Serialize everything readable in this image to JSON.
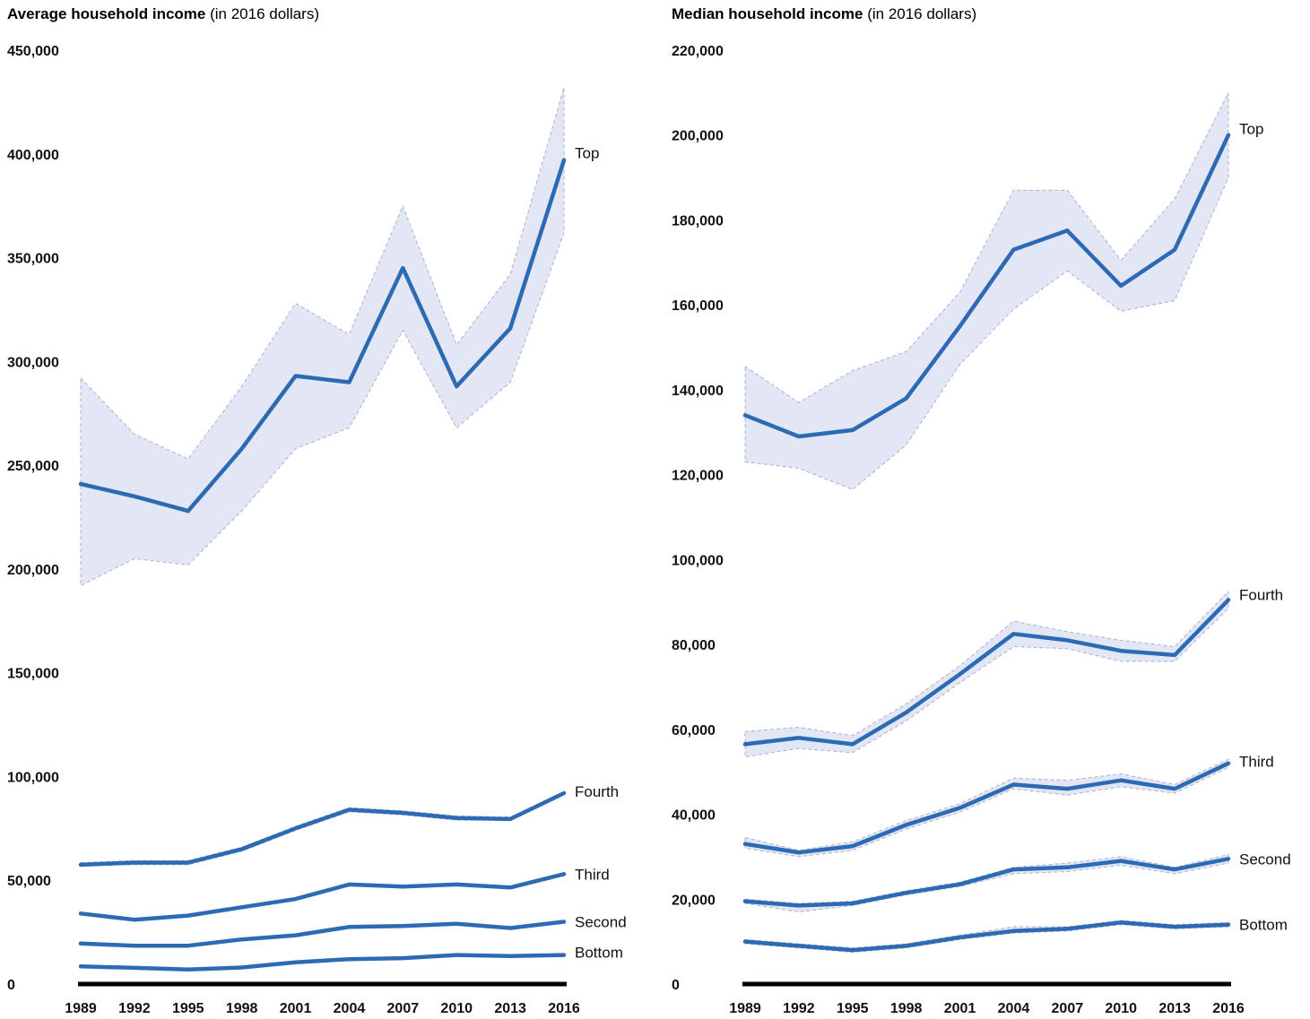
{
  "chart_data": [
    {
      "type": "line",
      "title": "Average household income",
      "subtitle": "(in 2016 dollars)",
      "xlabel": "",
      "ylabel": "",
      "categories": [
        "1989",
        "1992",
        "1995",
        "1998",
        "2001",
        "2004",
        "2007",
        "2010",
        "2013",
        "2016"
      ],
      "ylim": [
        0,
        450000
      ],
      "yticks": [
        0,
        50000,
        100000,
        150000,
        200000,
        250000,
        300000,
        350000,
        400000,
        450000
      ],
      "ytick_labels": [
        "0",
        "50,000",
        "100,000",
        "150,000",
        "200,000",
        "250,000",
        "300,000",
        "350,000",
        "400,000",
        "450,000"
      ],
      "grid": false,
      "legend": "inline labels at line ends",
      "series": [
        {
          "name": "Top",
          "values": [
            241000,
            235000,
            228000,
            258000,
            293000,
            290000,
            345000,
            288000,
            316000,
            397000
          ],
          "lower": [
            192000,
            205000,
            202000,
            228000,
            258000,
            268000,
            315000,
            268000,
            290000,
            362000
          ],
          "upper": [
            292000,
            265000,
            253000,
            288000,
            328000,
            313000,
            375000,
            308000,
            342000,
            432000
          ]
        },
        {
          "name": "Fourth",
          "values": [
            57500,
            58500,
            58500,
            65000,
            75000,
            84000,
            82500,
            80000,
            79500,
            92000
          ],
          "lower": [
            57000,
            57500,
            57500,
            64000,
            74000,
            83000,
            81500,
            79000,
            79000,
            91500
          ],
          "upper": [
            58500,
            59500,
            59500,
            66000,
            76000,
            85000,
            83500,
            81000,
            80500,
            92500
          ]
        },
        {
          "name": "Third",
          "values": [
            34000,
            31000,
            33000,
            37000,
            41000,
            48000,
            47000,
            48000,
            46500,
            53000
          ],
          "lower": [
            33500,
            30500,
            32500,
            36500,
            40500,
            47500,
            46500,
            47500,
            46000,
            52500
          ],
          "upper": [
            34500,
            31500,
            33500,
            37500,
            41500,
            48500,
            47500,
            48500,
            47000,
            53500
          ]
        },
        {
          "name": "Second",
          "values": [
            19500,
            18500,
            18500,
            21500,
            23500,
            27500,
            28000,
            29000,
            27000,
            30000
          ],
          "lower": [
            19000,
            18000,
            18000,
            21000,
            23000,
            27000,
            27500,
            28500,
            26500,
            29500
          ],
          "upper": [
            20000,
            19000,
            19000,
            22000,
            24000,
            28000,
            28500,
            29500,
            27500,
            30500
          ]
        },
        {
          "name": "Bottom",
          "values": [
            8500,
            7800,
            7000,
            8000,
            10500,
            12000,
            12500,
            14000,
            13500,
            14000
          ],
          "lower": [
            8200,
            7500,
            6700,
            7700,
            10200,
            11700,
            12200,
            13700,
            13200,
            13700
          ],
          "upper": [
            8800,
            8100,
            7300,
            8300,
            10800,
            12300,
            12800,
            14300,
            13800,
            14300
          ]
        }
      ]
    },
    {
      "type": "line",
      "title": "Median household income",
      "subtitle": "(in 2016 dollars)",
      "xlabel": "",
      "ylabel": "",
      "categories": [
        "1989",
        "1992",
        "1995",
        "1998",
        "2001",
        "2004",
        "2007",
        "2010",
        "2013",
        "2016"
      ],
      "ylim": [
        0,
        220000
      ],
      "yticks": [
        0,
        20000,
        40000,
        60000,
        80000,
        100000,
        120000,
        140000,
        160000,
        180000,
        200000,
        220000
      ],
      "ytick_labels": [
        "0",
        "20,000",
        "40,000",
        "60,000",
        "80,000",
        "100,000",
        "120,000",
        "140,000",
        "160,000",
        "180,000",
        "200,000",
        "220,000"
      ],
      "grid": false,
      "legend": "inline labels at line ends",
      "series": [
        {
          "name": "Top",
          "values": [
            134000,
            129000,
            130500,
            138000,
            155000,
            173000,
            177500,
            164500,
            173000,
            200000
          ],
          "lower": [
            123000,
            121500,
            116500,
            127000,
            146000,
            159000,
            168000,
            158500,
            161000,
            190000
          ],
          "upper": [
            145500,
            137000,
            144500,
            149000,
            163000,
            187000,
            187000,
            170500,
            185000,
            210000
          ]
        },
        {
          "name": "Fourth",
          "values": [
            56500,
            58000,
            56500,
            64000,
            73000,
            82500,
            81000,
            78500,
            77500,
            90500
          ],
          "lower": [
            53500,
            55500,
            54500,
            62000,
            71000,
            79500,
            79000,
            76000,
            76000,
            88500
          ],
          "upper": [
            59500,
            60500,
            58500,
            66000,
            75000,
            85500,
            83000,
            81000,
            79500,
            92500
          ]
        },
        {
          "name": "Third",
          "values": [
            33000,
            31000,
            32500,
            37500,
            41500,
            47000,
            46000,
            48000,
            46000,
            52000
          ],
          "lower": [
            32000,
            30000,
            31500,
            36500,
            40500,
            46000,
            44500,
            46500,
            45000,
            51000
          ],
          "upper": [
            34500,
            31500,
            33500,
            38500,
            42500,
            48500,
            48000,
            49500,
            47000,
            53000
          ]
        },
        {
          "name": "Second",
          "values": [
            19500,
            18500,
            19000,
            21500,
            23500,
            27000,
            27500,
            29000,
            27000,
            29500
          ],
          "lower": [
            19000,
            17000,
            18500,
            21000,
            23000,
            26000,
            26500,
            28000,
            26000,
            28500
          ],
          "upper": [
            20000,
            19000,
            19500,
            22000,
            24000,
            27500,
            28500,
            30000,
            27500,
            30500
          ]
        },
        {
          "name": "Bottom",
          "values": [
            10000,
            9000,
            8000,
            9000,
            11000,
            12500,
            13000,
            14500,
            13500,
            14000
          ],
          "lower": [
            9500,
            8500,
            7500,
            8500,
            10500,
            12000,
            12500,
            14000,
            13000,
            13500
          ],
          "upper": [
            10500,
            9500,
            8500,
            9500,
            11500,
            13500,
            13500,
            15000,
            14000,
            14500
          ]
        }
      ]
    }
  ],
  "colors": {
    "line": "#2c6bb4",
    "band": "#e3e7f5",
    "band_edge": "#a9b0d0",
    "axis": "#000000"
  }
}
